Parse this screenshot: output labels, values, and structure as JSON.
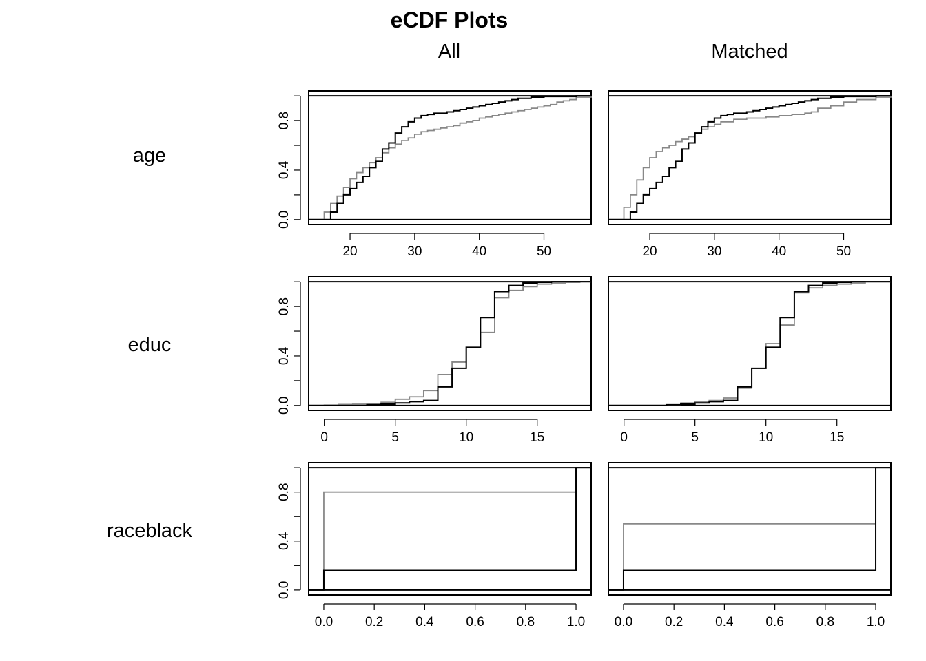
{
  "figure": {
    "title": "eCDF Plots"
  },
  "columns": [
    "All",
    "Matched"
  ],
  "colors": {
    "treated": "#000000",
    "control": "#888888"
  },
  "chart_data": [
    {
      "type": "line",
      "variable": "age",
      "panel": "All",
      "xlim": [
        13.6,
        57.3
      ],
      "ylim": [
        -0.04,
        1.04
      ],
      "xticks": [
        20,
        30,
        40,
        50
      ],
      "yticks": [
        0.0,
        0.4,
        0.8
      ],
      "grid": false,
      "series": [
        {
          "role": "treated",
          "x": [
            13.6,
            17,
            18,
            19,
            20,
            21,
            22,
            23,
            24,
            25,
            26,
            27,
            28,
            29,
            30,
            31,
            32,
            33,
            34,
            35,
            36,
            37,
            38,
            39,
            40,
            41,
            42,
            43,
            44,
            45,
            46,
            48,
            50,
            55,
            57.3
          ],
          "y": [
            0,
            0.06,
            0.13,
            0.2,
            0.25,
            0.3,
            0.35,
            0.42,
            0.47,
            0.57,
            0.62,
            0.7,
            0.75,
            0.79,
            0.82,
            0.84,
            0.85,
            0.86,
            0.86,
            0.87,
            0.88,
            0.89,
            0.9,
            0.91,
            0.92,
            0.93,
            0.94,
            0.95,
            0.96,
            0.97,
            0.98,
            0.99,
            0.995,
            1,
            1
          ]
        },
        {
          "role": "control",
          "x": [
            13.6,
            16,
            17,
            18,
            19,
            20,
            21,
            22,
            23,
            24,
            25,
            26,
            27,
            28,
            29,
            30,
            31,
            32,
            33,
            34,
            35,
            36,
            37,
            38,
            39,
            40,
            41,
            42,
            43,
            44,
            45,
            46,
            47,
            48,
            49,
            50,
            51,
            52,
            53,
            54,
            55,
            57.3
          ],
          "y": [
            0,
            0.06,
            0.13,
            0.19,
            0.26,
            0.33,
            0.38,
            0.42,
            0.46,
            0.5,
            0.54,
            0.58,
            0.61,
            0.64,
            0.66,
            0.69,
            0.71,
            0.72,
            0.73,
            0.74,
            0.75,
            0.76,
            0.78,
            0.79,
            0.8,
            0.82,
            0.83,
            0.84,
            0.85,
            0.86,
            0.87,
            0.88,
            0.89,
            0.9,
            0.91,
            0.92,
            0.93,
            0.95,
            0.96,
            0.97,
            0.99,
            1
          ]
        }
      ]
    },
    {
      "type": "line",
      "variable": "age",
      "panel": "Matched",
      "xlim": [
        13.6,
        57.3
      ],
      "ylim": [
        -0.04,
        1.04
      ],
      "xticks": [
        20,
        30,
        40,
        50
      ],
      "yticks": [
        0.0,
        0.4,
        0.8
      ],
      "grid": false,
      "series": [
        {
          "role": "treated",
          "x": [
            13.6,
            17,
            18,
            19,
            20,
            21,
            22,
            23,
            24,
            25,
            26,
            27,
            28,
            29,
            30,
            31,
            32,
            33,
            34,
            35,
            36,
            37,
            38,
            39,
            40,
            41,
            42,
            43,
            44,
            45,
            46,
            48,
            50,
            55,
            57.3
          ],
          "y": [
            0,
            0.06,
            0.13,
            0.2,
            0.25,
            0.3,
            0.35,
            0.42,
            0.47,
            0.57,
            0.62,
            0.7,
            0.75,
            0.79,
            0.82,
            0.84,
            0.85,
            0.86,
            0.86,
            0.87,
            0.88,
            0.89,
            0.9,
            0.91,
            0.92,
            0.93,
            0.94,
            0.95,
            0.96,
            0.97,
            0.98,
            0.99,
            0.995,
            1,
            1
          ]
        },
        {
          "role": "control",
          "x": [
            13.6,
            16,
            17,
            18,
            19,
            20,
            21,
            22,
            23,
            24,
            25,
            26,
            27,
            28,
            29,
            30,
            31,
            33,
            35,
            38,
            40,
            42,
            44,
            45,
            46,
            48,
            50,
            52,
            55,
            57.3
          ],
          "y": [
            0,
            0.1,
            0.2,
            0.32,
            0.42,
            0.5,
            0.55,
            0.58,
            0.6,
            0.63,
            0.65,
            0.67,
            0.7,
            0.73,
            0.75,
            0.77,
            0.79,
            0.81,
            0.82,
            0.83,
            0.84,
            0.85,
            0.86,
            0.87,
            0.9,
            0.92,
            0.95,
            0.97,
            0.99,
            1
          ]
        }
      ]
    },
    {
      "type": "line",
      "variable": "educ",
      "panel": "All",
      "xlim": [
        -1.1,
        18.8
      ],
      "ylim": [
        -0.04,
        1.04
      ],
      "xticks": [
        0,
        5,
        10,
        15
      ],
      "yticks": [
        0.0,
        0.4,
        0.8
      ],
      "grid": false,
      "series": [
        {
          "role": "treated",
          "x": [
            -1.1,
            3,
            4,
            5,
            6,
            7,
            8,
            9,
            10,
            11,
            12,
            13,
            14,
            15,
            16,
            17,
            18.8
          ],
          "y": [
            0,
            0.005,
            0.01,
            0.02,
            0.03,
            0.04,
            0.15,
            0.3,
            0.47,
            0.71,
            0.92,
            0.97,
            0.99,
            0.995,
            1,
            1,
            1
          ]
        },
        {
          "role": "control",
          "x": [
            -1.1,
            0,
            1,
            2,
            3,
            4,
            5,
            6,
            7,
            8,
            9,
            10,
            11,
            12,
            13,
            14,
            15,
            16,
            17,
            18,
            18.8
          ],
          "y": [
            0,
            0.003,
            0.008,
            0.01,
            0.015,
            0.025,
            0.05,
            0.07,
            0.12,
            0.25,
            0.35,
            0.47,
            0.59,
            0.87,
            0.93,
            0.96,
            0.98,
            0.99,
            0.995,
            1,
            1
          ]
        }
      ]
    },
    {
      "type": "line",
      "variable": "educ",
      "panel": "Matched",
      "xlim": [
        -1.1,
        18.8
      ],
      "ylim": [
        -0.04,
        1.04
      ],
      "xticks": [
        0,
        5,
        10,
        15
      ],
      "yticks": [
        0.0,
        0.4,
        0.8
      ],
      "grid": false,
      "series": [
        {
          "role": "treated",
          "x": [
            -1.1,
            3,
            4,
            5,
            6,
            7,
            8,
            9,
            10,
            11,
            12,
            13,
            14,
            15,
            16,
            17,
            18.8
          ],
          "y": [
            0,
            0.005,
            0.01,
            0.02,
            0.03,
            0.04,
            0.15,
            0.3,
            0.47,
            0.71,
            0.92,
            0.97,
            0.99,
            0.995,
            1,
            1,
            1
          ]
        },
        {
          "role": "control",
          "x": [
            -1.1,
            4,
            5,
            6,
            7,
            8,
            9,
            10,
            11,
            12,
            13,
            14,
            15,
            16,
            17,
            18.8
          ],
          "y": [
            0,
            0.02,
            0.03,
            0.04,
            0.06,
            0.14,
            0.3,
            0.5,
            0.65,
            0.91,
            0.95,
            0.97,
            0.98,
            0.99,
            1,
            1
          ]
        }
      ]
    },
    {
      "type": "line",
      "variable": "raceblack",
      "panel": "All",
      "xlim": [
        -0.06,
        1.06
      ],
      "ylim": [
        -0.04,
        1.04
      ],
      "xticks": [
        0.0,
        0.2,
        0.4,
        0.6,
        0.8,
        1.0
      ],
      "yticks": [
        0.0,
        0.4,
        0.8
      ],
      "grid": false,
      "series": [
        {
          "role": "treated",
          "x": [
            -0.06,
            0,
            1,
            1.06
          ],
          "y": [
            0,
            0.16,
            1,
            1
          ]
        },
        {
          "role": "control",
          "x": [
            -0.06,
            0,
            1,
            1.06
          ],
          "y": [
            0,
            0.8,
            1,
            1
          ]
        }
      ]
    },
    {
      "type": "line",
      "variable": "raceblack",
      "panel": "Matched",
      "xlim": [
        -0.06,
        1.06
      ],
      "ylim": [
        -0.04,
        1.04
      ],
      "xticks": [
        0.0,
        0.2,
        0.4,
        0.6,
        0.8,
        1.0
      ],
      "yticks": [
        0.0,
        0.4,
        0.8
      ],
      "grid": false,
      "series": [
        {
          "role": "treated",
          "x": [
            -0.06,
            0,
            1,
            1.06
          ],
          "y": [
            0,
            0.16,
            1,
            1
          ]
        },
        {
          "role": "control",
          "x": [
            -0.06,
            0,
            1,
            1.06
          ],
          "y": [
            0,
            0.54,
            1,
            1
          ]
        }
      ]
    }
  ]
}
